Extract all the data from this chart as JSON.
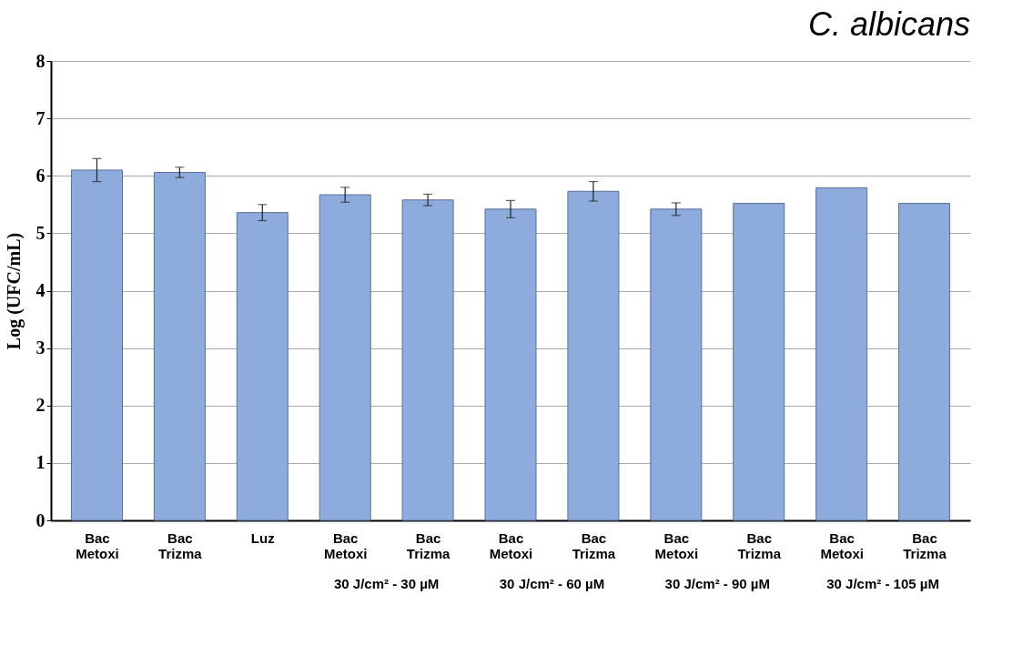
{
  "chart_data": {
    "type": "bar",
    "title": "C. albicans",
    "ylabel": "Log (UFC/mL)",
    "categories": [
      "Bac\nMetoxi",
      "Bac\nTrizma",
      "Luz",
      "Bac\nMetoxi",
      "Bac\nTrizma",
      "Bac\nMetoxi",
      "Bac\nTrizma",
      "Bac\nMetoxi",
      "Bac\nTrizma",
      "Bac\nMetoxi",
      "Bac\nTrizma"
    ],
    "values": [
      6.1,
      6.06,
      5.36,
      5.67,
      5.58,
      5.42,
      5.73,
      5.42,
      5.52,
      5.79,
      5.52
    ],
    "errors": [
      0.2,
      0.09,
      0.14,
      0.13,
      0.1,
      0.15,
      0.17,
      0.11,
      null,
      null,
      null
    ],
    "color": "#8eabdd",
    "ylim": [
      0,
      8
    ],
    "yticks": [
      0,
      1,
      2,
      3,
      4,
      5,
      6,
      7,
      8
    ],
    "grid": "y",
    "annotations": [
      "30 J/cm² - 30 µM",
      "30 J/cm² - 60 µM",
      "30 J/cm² - 90 µM",
      "30 J/cm² - 105 µM"
    ]
  }
}
